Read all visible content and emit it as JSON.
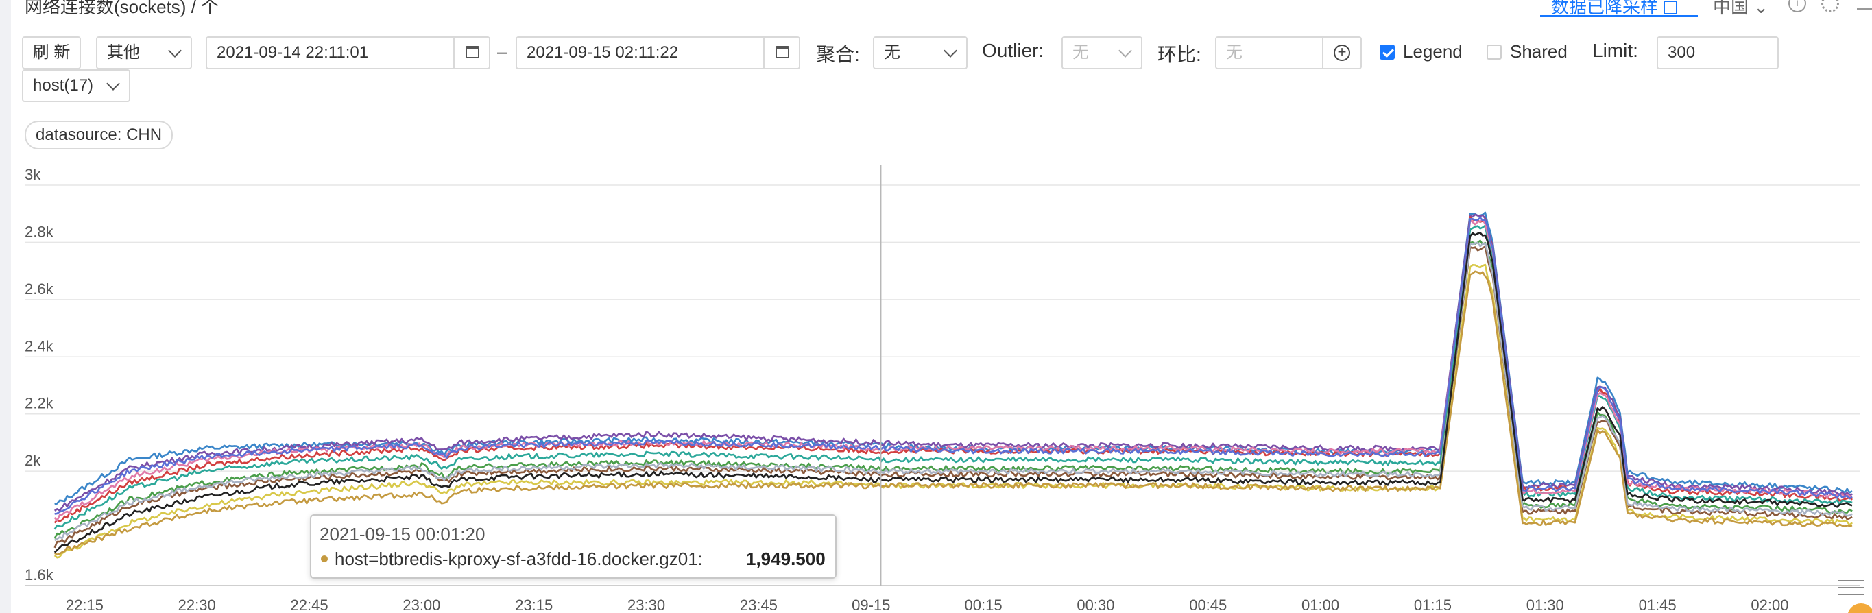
{
  "header": {
    "title": "网络连接数(sockets) / 个",
    "sampled_link": "数据已降采样",
    "region": "中国",
    "icons": [
      "info-icon",
      "gear-icon",
      "menu-icon"
    ]
  },
  "toolbar": {
    "refresh_label": "刷 新",
    "category_value": "其他",
    "time_start": "2021-09-14 22:11:01",
    "time_sep": "–",
    "time_end": "2021-09-15 02:11:22",
    "aggregate_label": "聚合:",
    "aggregate_value": "无",
    "outlier_label": "Outlier:",
    "outlier_value": "无",
    "ratio_label": "环比:",
    "ratio_placeholder": "无",
    "legend_label": "Legend",
    "legend_checked": true,
    "shared_label": "Shared",
    "shared_checked": false,
    "limit_label": "Limit:",
    "limit_value": "300",
    "group_value": "host(17)"
  },
  "filters": {
    "tag": "datasource: CHN"
  },
  "tooltip": {
    "time": "2021-09-15 00:01:20",
    "host": "host=btbredis-kproxy-sf-a3fdd-16.docker.gz01:",
    "value": "1,949.500",
    "color": "#c49a40"
  },
  "chart_data": {
    "type": "line",
    "title": "",
    "xlabel": "",
    "ylabel": "",
    "ylim": [
      1600,
      3000
    ],
    "yticks": [
      1600,
      2000,
      2200,
      2400,
      2600,
      2800,
      3000
    ],
    "ytick_labels": [
      "1.6k",
      "2k",
      "2.2k",
      "2.4k",
      "2.6k",
      "2.8k",
      "3k"
    ],
    "x_range_minutes": [
      -4,
      241
    ],
    "xticks_minutes": [
      4,
      19,
      34,
      49,
      64,
      79,
      94,
      109,
      124,
      139,
      154,
      169,
      184,
      199,
      214,
      229
    ],
    "xtick_labels": [
      "22:15",
      "22:30",
      "22:45",
      "23:00",
      "23:15",
      "23:30",
      "23:45",
      "09-15",
      "00:15",
      "00:30",
      "00:45",
      "01:00",
      "01:15",
      "01:30",
      "01:45",
      "02:00"
    ],
    "x_unit": "minutes after 22:11",
    "crosshair_minute": 110.3,
    "grid": true,
    "series": [
      {
        "color": "#3b86c9",
        "x": [
          0,
          10,
          20,
          30,
          49,
          52,
          54,
          60,
          80,
          100,
          110,
          120,
          150,
          170,
          185,
          189,
          191,
          192,
          196,
          196.5,
          203,
          206,
          207,
          209,
          210,
          216,
          230,
          240
        ],
        "values": [
          1880,
          2040,
          2080,
          2090,
          2100,
          2060,
          2090,
          2100,
          2110,
          2100,
          2090,
          2080,
          2080,
          2070,
          2070,
          2900,
          2900,
          2800,
          1960,
          1960,
          1960,
          2320,
          2320,
          2200,
          2000,
          1960,
          1950,
          1930
        ]
      },
      {
        "color": "#7b4fa8",
        "x": [
          0,
          10,
          20,
          30,
          49,
          52,
          54,
          60,
          80,
          100,
          110,
          120,
          150,
          170,
          185,
          189,
          191,
          192,
          196,
          196.5,
          203,
          206,
          207,
          209,
          210,
          216,
          230,
          240
        ],
        "values": [
          1860,
          2010,
          2060,
          2080,
          2110,
          2070,
          2100,
          2110,
          2130,
          2110,
          2100,
          2090,
          2090,
          2080,
          2080,
          2890,
          2890,
          2790,
          1950,
          1950,
          1950,
          2300,
          2300,
          2190,
          1980,
          1950,
          1940,
          1920
        ]
      },
      {
        "color": "#d23f3f",
        "x": [
          0,
          10,
          20,
          30,
          49,
          52,
          54,
          60,
          80,
          100,
          110,
          120,
          150,
          170,
          185,
          189,
          191,
          192,
          196,
          196.5,
          203,
          206,
          207,
          209,
          210,
          216,
          230,
          240
        ],
        "values": [
          1820,
          1960,
          2020,
          2050,
          2080,
          2040,
          2070,
          2080,
          2090,
          2080,
          2070,
          2070,
          2070,
          2060,
          2060,
          2880,
          2880,
          2780,
          1940,
          1940,
          1940,
          2280,
          2280,
          2170,
          1960,
          1930,
          1920,
          1900
        ]
      },
      {
        "color": "#2ca89a",
        "x": [
          0,
          10,
          20,
          30,
          49,
          52,
          54,
          60,
          80,
          100,
          110,
          120,
          150,
          170,
          185,
          189,
          191,
          192,
          196,
          196.5,
          203,
          206,
          207,
          209,
          210,
          216,
          230,
          240
        ],
        "values": [
          1800,
          1940,
          2000,
          2030,
          2050,
          2010,
          2040,
          2050,
          2060,
          2050,
          2040,
          2040,
          2040,
          2030,
          2030,
          2850,
          2850,
          2750,
          1920,
          1920,
          1920,
          2260,
          2260,
          2150,
          1940,
          1910,
          1900,
          1890
        ]
      },
      {
        "color": "#4a9e4a",
        "x": [
          0,
          10,
          20,
          30,
          49,
          52,
          54,
          60,
          80,
          100,
          110,
          120,
          150,
          170,
          185,
          189,
          191,
          192,
          196,
          196.5,
          203,
          206,
          207,
          209,
          210,
          216,
          230,
          240
        ],
        "values": [
          1770,
          1900,
          1960,
          1990,
          2020,
          1980,
          2010,
          2020,
          2030,
          2020,
          2010,
          2010,
          2010,
          2000,
          2000,
          2800,
          2800,
          2700,
          1880,
          1880,
          1880,
          2200,
          2200,
          2100,
          1900,
          1880,
          1870,
          1860
        ]
      },
      {
        "color": "#8a5a3c",
        "x": [
          0,
          10,
          20,
          30,
          49,
          52,
          54,
          60,
          80,
          100,
          110,
          120,
          150,
          170,
          185,
          189,
          191,
          192,
          196,
          196.5,
          203,
          206,
          207,
          209,
          210,
          216,
          230,
          240
        ],
        "values": [
          1740,
          1880,
          1940,
          1970,
          2000,
          1960,
          1990,
          2000,
          2010,
          2000,
          1990,
          1990,
          1990,
          1980,
          1980,
          2780,
          2780,
          2680,
          1860,
          1860,
          1860,
          2180,
          2180,
          2080,
          1880,
          1860,
          1850,
          1840
        ]
      },
      {
        "color": "#e07aa8",
        "x": [
          0,
          10,
          20,
          30,
          49,
          52,
          54,
          60,
          80,
          100,
          110,
          120,
          150,
          170,
          185,
          189,
          191,
          192,
          196,
          196.5,
          203,
          206,
          207,
          209,
          210,
          216,
          230,
          240
        ],
        "values": [
          1830,
          1980,
          2040,
          2070,
          2090,
          2050,
          2080,
          2090,
          2100,
          2090,
          2080,
          2080,
          2080,
          2070,
          2070,
          2870,
          2870,
          2770,
          1930,
          1930,
          1930,
          2270,
          2270,
          2160,
          1960,
          1940,
          1930,
          1910
        ]
      },
      {
        "color": "#d8c84a",
        "x": [
          0,
          10,
          20,
          30,
          49,
          52,
          54,
          60,
          80,
          100,
          110,
          120,
          150,
          170,
          185,
          189,
          191,
          192,
          196,
          196.5,
          203,
          206,
          207,
          209,
          210,
          216,
          230,
          240
        ],
        "values": [
          1700,
          1820,
          1880,
          1920,
          1960,
          1920,
          1950,
          1960,
          1960,
          1960,
          1950,
          1950,
          1950,
          1940,
          1940,
          2720,
          2720,
          2620,
          1830,
          1830,
          1830,
          2150,
          2150,
          2050,
          1860,
          1840,
          1830,
          1820
        ]
      },
      {
        "color": "#c49a40",
        "x": [
          0,
          10,
          20,
          30,
          49,
          52,
          54,
          60,
          80,
          100,
          110,
          120,
          150,
          170,
          185,
          189,
          191,
          192,
          196,
          196.5,
          203,
          206,
          207,
          209,
          210,
          216,
          230,
          240
        ],
        "values": [
          1710,
          1800,
          1860,
          1890,
          1920,
          1890,
          1930,
          1940,
          1950,
          1950,
          1949.5,
          1950,
          1950,
          1940,
          1940,
          2690,
          2690,
          2600,
          1820,
          1820,
          1820,
          2140,
          2140,
          2040,
          1850,
          1830,
          1820,
          1810
        ]
      },
      {
        "color": "#5b6fd6",
        "x": [
          0,
          10,
          20,
          30,
          49,
          52,
          54,
          60,
          80,
          100,
          110,
          120,
          150,
          170,
          185,
          189,
          191,
          192,
          196,
          196.5,
          203,
          206,
          207,
          209,
          210,
          216,
          230,
          240
        ],
        "values": [
          1850,
          2000,
          2050,
          2070,
          2090,
          2050,
          2080,
          2090,
          2100,
          2090,
          2080,
          2070,
          2070,
          2060,
          2060,
          2880,
          2880,
          2780,
          1940,
          1940,
          1940,
          2290,
          2290,
          2180,
          1970,
          1940,
          1930,
          1910
        ]
      },
      {
        "color": "#a8b2c4",
        "x": [
          0,
          10,
          20,
          30,
          49,
          52,
          54,
          60,
          80,
          100,
          110,
          120,
          150,
          170,
          185,
          189,
          191,
          192,
          196,
          196.5,
          203,
          206,
          207,
          209,
          210,
          216,
          230,
          240
        ],
        "values": [
          1760,
          1890,
          1950,
          1980,
          2010,
          1970,
          2000,
          2010,
          2020,
          2010,
          2000,
          2000,
          2000,
          1990,
          1990,
          2790,
          2790,
          2690,
          1870,
          1870,
          1870,
          2190,
          2190,
          2090,
          1890,
          1870,
          1860,
          1850
        ]
      },
      {
        "color": "#222222",
        "x": [
          0,
          10,
          20,
          30,
          49,
          52,
          54,
          60,
          80,
          100,
          110,
          120,
          150,
          170,
          185,
          189,
          191,
          192,
          196,
          196.5,
          203,
          206,
          207,
          209,
          210,
          216,
          230,
          240
        ],
        "values": [
          1720,
          1850,
          1910,
          1950,
          1980,
          1940,
          1970,
          1980,
          1990,
          1980,
          1970,
          1970,
          1970,
          1960,
          1960,
          2830,
          2830,
          2730,
          1900,
          1900,
          1900,
          2220,
          2220,
          2120,
          1920,
          1900,
          1890,
          1880
        ]
      }
    ]
  }
}
